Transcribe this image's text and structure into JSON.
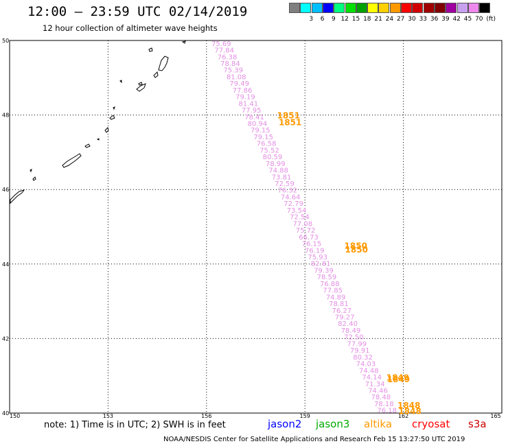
{
  "header": {
    "title": "12:00 – 23:59 UTC 02/14/2019",
    "subtitle": "12 hour collection of altimeter wave heights"
  },
  "legend": {
    "unit": "(ft)",
    "items": [
      {
        "label": "",
        "color": "#7f7f7f"
      },
      {
        "label": "3",
        "color": "#00ffff"
      },
      {
        "label": "6",
        "color": "#00bfff"
      },
      {
        "label": "9",
        "color": "#0000ff"
      },
      {
        "label": "12",
        "color": "#00ff7f"
      },
      {
        "label": "15",
        "color": "#00e000"
      },
      {
        "label": "18",
        "color": "#00a000"
      },
      {
        "label": "21",
        "color": "#ffff00"
      },
      {
        "label": "24",
        "color": "#ffd000"
      },
      {
        "label": "27",
        "color": "#ff9900"
      },
      {
        "label": "30",
        "color": "#ff0000"
      },
      {
        "label": "33",
        "color": "#d00000"
      },
      {
        "label": "36",
        "color": "#a00000"
      },
      {
        "label": "39",
        "color": "#800000"
      },
      {
        "label": "42",
        "color": "#a000a0"
      },
      {
        "label": "45",
        "color": "#c8a0f0"
      },
      {
        "label": "70",
        "color": "#ee88ee"
      },
      {
        "label": "",
        "color": "#000000"
      }
    ]
  },
  "map": {
    "lat_labels": [
      {
        "lat": 50,
        "label": "50"
      },
      {
        "lat": 48,
        "label": "48"
      },
      {
        "lat": 46,
        "label": "46"
      },
      {
        "lat": 44,
        "label": "44"
      },
      {
        "lat": 42,
        "label": "42"
      },
      {
        "lat": 40,
        "label": "40"
      }
    ],
    "lon_labels": [
      {
        "lon": 150,
        "label": "150"
      },
      {
        "lon": 153,
        "label": "153"
      },
      {
        "lon": 156,
        "label": "156"
      },
      {
        "lon": 159,
        "label": "159"
      },
      {
        "lon": 162,
        "label": "162"
      },
      {
        "lon": 165,
        "label": "165"
      }
    ],
    "track_values": [
      "75.69",
      "77.84",
      "76.38",
      "78.84",
      "75.39",
      "81.08",
      "79.49",
      "77.86",
      "79.19",
      "81.41",
      "77.95",
      "78.41",
      "80.94",
      "79.15",
      "79.15",
      "76.58",
      "75.52",
      "80.59",
      "78.99",
      "74.88",
      "73.81",
      "72.59",
      "76.32",
      "74.64",
      "72.79",
      "73.54",
      "72.54",
      "77.08",
      "75.72",
      "66.73",
      "76.15",
      "76.19",
      "75.93",
      "82.81",
      "79.39",
      "78.59",
      "76.88",
      "77.85",
      "74.89",
      "78.81",
      "76.27",
      "79.27",
      "82.40",
      "78.49",
      "72.50",
      "77.99",
      "79.91",
      "80.32",
      "74.03",
      "74.48",
      "74.14",
      "71.34",
      "74.46",
      "78.48",
      "78.18",
      "76.18"
    ],
    "time_labels": [
      {
        "text": "1851",
        "lat": 47.98,
        "lon": 158.15
      },
      {
        "text": "1851",
        "lat": 47.8,
        "lon": 158.2
      },
      {
        "text": "1850",
        "lat": 44.48,
        "lon": 160.2
      },
      {
        "text": "1850",
        "lat": 44.38,
        "lon": 160.22
      },
      {
        "text": "1849",
        "lat": 40.95,
        "lon": 161.48
      },
      {
        "text": "1849",
        "lat": 40.9,
        "lon": 161.5
      },
      {
        "text": "1848",
        "lat": 40.2,
        "lon": 161.82
      },
      {
        "text": "1848",
        "lat": 40.05,
        "lon": 161.85
      }
    ]
  },
  "note": "note: 1) Time is in UTC; 2) SWH is in feet",
  "satellites": [
    {
      "name": "jason2",
      "color": "#0000ff"
    },
    {
      "name": "jason3",
      "color": "#00aa00"
    },
    {
      "name": "altika",
      "color": "#ff9900"
    },
    {
      "name": "cryosat",
      "color": "#ff0000"
    },
    {
      "name": "s3a",
      "color": "#cc0000"
    }
  ],
  "footer": "NOAA/NESDIS Center for Satellite Applications and Research   Feb 15 13:27:50 UTC 2019"
}
